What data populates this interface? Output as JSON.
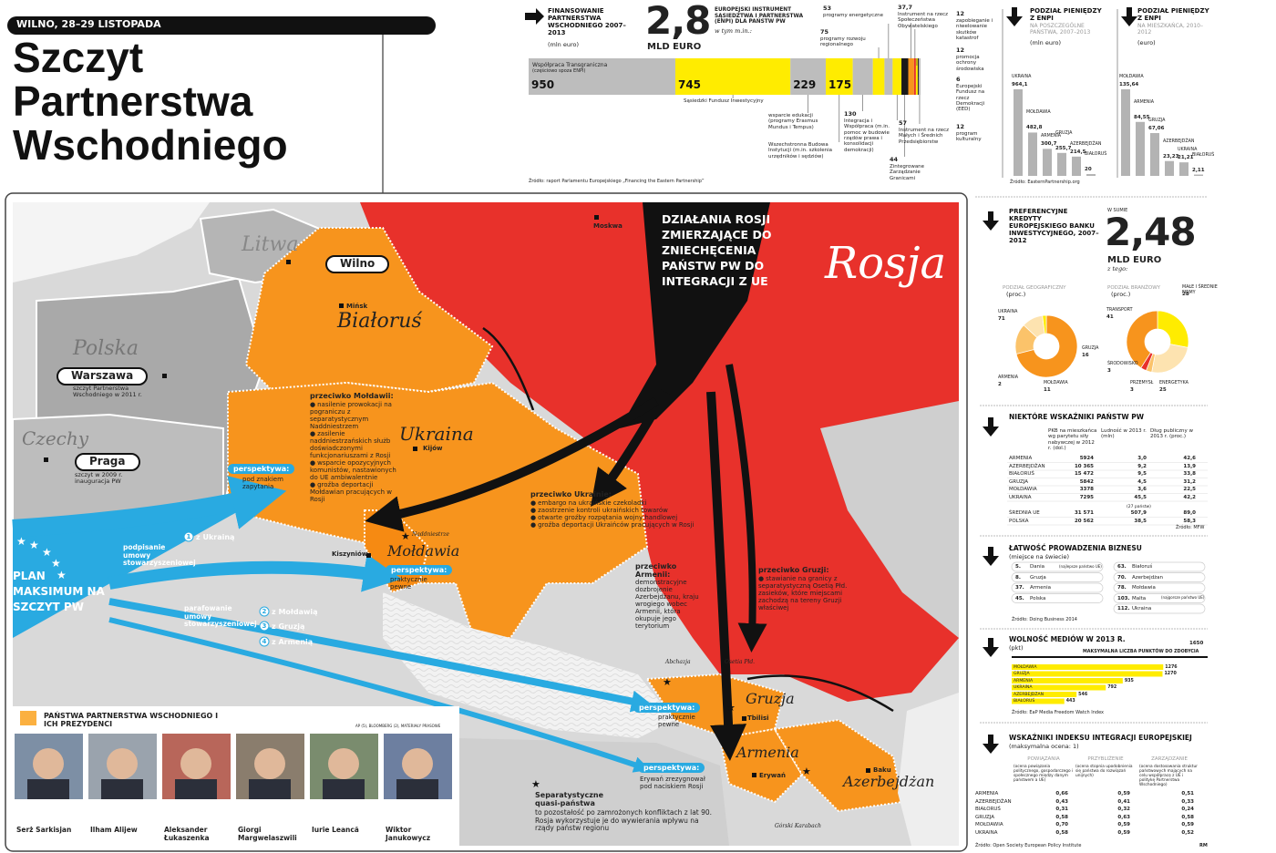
{
  "header": {
    "date": "WILNO, 28–29 LISTOPADA",
    "title": [
      "Szczyt",
      "Partnerstwa",
      "Wschodniego"
    ]
  },
  "financing": {
    "heading": "FINANSOWANIE PARTNERSTWA WSCHODNIEGO 2007–2013",
    "unit": "(mln euro)",
    "total": "2,8",
    "total_unit": "MLD EURO",
    "enpi_heading": "EUROPEJSKI INSTRUMENT SĄSIEDZTWA I PARTNERSTWA (ENPI) DLA PAŃSTW PW",
    "enpi_note": "w tym m.in.:",
    "cross_border_note": "(częściowo spoza ENPI)",
    "chart": {
      "type": "bar",
      "categories": [
        "Współpraca Transgraniczna",
        "Sąsiedzki Fundusz Inwestycyjny",
        "wsparcie edukacji (programy Erasmus Mundus i Tempus)",
        "Wszechstronna Budowa Instytucji (m.in. szkolenia urzędników i sędziów)",
        "Integracja i Współpraca (m.in. pomoc w budowie rządów prawa i konsolidacji demokracji)",
        "programy rozwoju regionalnego",
        "programy energetyczne",
        "Instrument na rzecz Małych i Średnich Przedsiębiorstw",
        "Zintegrowane Zarządzanie Granicami",
        "Instrument na rzecz Społeczeństwa Obywatelskiego",
        "zapobieganie i niwelowanie skutków katastrof",
        "promocja ochrony środowiska",
        "Europejski Fundusz na rzecz Demokracji (EED)",
        "program kulturalny"
      ],
      "values": [
        950,
        745,
        229,
        175,
        130,
        75,
        53,
        57,
        44,
        37.7,
        12,
        12,
        6,
        12
      ],
      "value_labels": [
        "950",
        "745",
        "229",
        "175",
        "130",
        "75",
        "53",
        "57",
        "44",
        "37,7",
        "12",
        "12",
        "6",
        "12"
      ],
      "colors": [
        "#bdbdbd",
        "#ffec00",
        "#bdbdbd",
        "#ffec00",
        "#bdbdbd",
        "#ffec00",
        "#bdbdbd",
        "#ffec00",
        "#1a1a1a",
        "#f7941d",
        "#e8312b",
        "#ffec00",
        "#1a1a1a",
        "#bdbdbd"
      ]
    },
    "source": "Źródło: raport Parlamentu Europejskiego „Financing the Eastern Partnership”"
  },
  "enpi_countries": {
    "type": "bar",
    "heading": "PODZIAŁ PIENIĘDZY Z ENPI",
    "subheading": "NA POSZCZEGÓLNE PAŃSTWA, 2007–2013",
    "unit": "(mln euro)",
    "categories": [
      "UKRAINA",
      "MOŁDAWIA",
      "ARMENIA",
      "GRUZJA",
      "AZERBEJDŻAN",
      "BIAŁORUŚ"
    ],
    "values": [
      964.1,
      482.8,
      300.7,
      255.7,
      214.5,
      20
    ],
    "value_labels": [
      "964,1",
      "482,8",
      "300,7",
      "255,7",
      "214,5",
      "20"
    ],
    "color": "#b3b3b3",
    "source": "Źródło: EasternPartnership.org"
  },
  "enpi_per_capita": {
    "type": "bar",
    "heading": "PODZIAŁ PIENIĘDZY Z ENPI",
    "subheading": "NA MIESZKAŃCA, 2010–2012",
    "unit": "(euro)",
    "categories": [
      "MOŁDAWIA",
      "ARMENIA",
      "GRUZJA",
      "AZERBEJDŻAN",
      "UKRAINA",
      "BIAŁORUŚ"
    ],
    "values": [
      135.64,
      84.55,
      67.06,
      23.23,
      21.21,
      2.11
    ],
    "value_labels": [
      "135,64",
      "84,55",
      "67,06",
      "23,23",
      "21,21",
      "2,11"
    ],
    "color": "#b3b3b3"
  },
  "eib": {
    "heading": "PREFERENCYJNE KREDYTY EUROPEJSKIEGO BANKU INWESTYCYJNEGO, 2007–2012",
    "total_note": "W SUMIE",
    "total": "2,48",
    "total_unit": "MLD EURO",
    "of_which": "z tego:",
    "charts": [
      {
        "type": "pie",
        "title": "PODZIAŁ GEOGRAFICZNY",
        "unit": "(proc.)",
        "categories": [
          "UKRAINA",
          "GRUZJA",
          "MOŁDAWIA",
          "ARMENIA"
        ],
        "values": [
          71,
          16,
          11,
          2
        ],
        "colors": [
          "#f7941d",
          "#fbc36a",
          "#fde3b0",
          "#ffec00"
        ]
      },
      {
        "type": "pie",
        "title": "PODZIAŁ BRANŻOWY",
        "unit": "(proc.)",
        "categories": [
          "MAŁE I ŚREDNIE FIRMY",
          "ENERGETYKA",
          "PRZEMYSŁ",
          "ŚRODOWISKO",
          "TRANSPORT"
        ],
        "values": [
          28,
          25,
          3,
          3,
          41
        ],
        "colors": [
          "#ffec00",
          "#fde3b0",
          "#fbc36a",
          "#e8312b",
          "#f7941d"
        ]
      }
    ]
  },
  "indicators": {
    "heading": "NIEKTÓRE WSKAŹNIKI PAŃSTW PW",
    "columns": [
      "PKB na mieszkańca wg parytetu siły nabywczej w 2012 r. (dol.)",
      "Ludność w 2013 r. (mln)",
      "Dług publiczny w 2013 r. (proc.)"
    ],
    "rows": [
      [
        "ARMENIA",
        "5924",
        "3,0",
        "42,6"
      ],
      [
        "AZERBEJDŻAN",
        "10 365",
        "9,2",
        "13,9"
      ],
      [
        "BIAŁORUŚ",
        "15 472",
        "9,5",
        "33,8"
      ],
      [
        "GRUZJA",
        "5842",
        "4,5",
        "31,2"
      ],
      [
        "MOŁDAWIA",
        "3378",
        "3,6",
        "22,5"
      ],
      [
        "UKRAINA",
        "7295",
        "45,5",
        "42,2"
      ],
      [
        "ŚREDNIA UE",
        "31 571",
        "507,9",
        "89,0"
      ],
      [
        "POLSKA",
        "20 562",
        "38,5",
        "58,3"
      ]
    ],
    "eu_note": "(27 państw)",
    "source": "Źródło: MFW"
  },
  "business": {
    "heading": "ŁATWOŚĆ PROWADZENIA BIZNESU",
    "unit": "(miejsce na świecie)",
    "left": [
      {
        "rank": "5.",
        "country": "Dania",
        "note": "(najlepsze państwo UE)"
      },
      {
        "rank": "8.",
        "country": "Gruzja"
      },
      {
        "rank": "37.",
        "country": "Armenia"
      },
      {
        "rank": "45.",
        "country": "Polska"
      }
    ],
    "right": [
      {
        "rank": "63.",
        "country": "Białoruś"
      },
      {
        "rank": "70.",
        "country": "Azerbejdżan"
      },
      {
        "rank": "78.",
        "country": "Mołdawia"
      },
      {
        "rank": "103.",
        "country": "Malta",
        "note": "(najgorsze państwo UE)"
      },
      {
        "rank": "112.",
        "country": "Ukraina"
      }
    ],
    "source": "Źródło: Doing Business 2014"
  },
  "media": {
    "type": "bar",
    "heading": "WOLNOŚĆ MEDIÓW W 2013 R.",
    "unit": "(pkt)",
    "max": 1650,
    "max_label": "MAKSYMALNA LICZBA PUNKTÓW DO ZDOBYCIA",
    "categories": [
      "MOŁDAWIA",
      "GRUZJA",
      "ARMENIA",
      "UKRAINA",
      "AZERBEJDŻAN",
      "BIAŁORUŚ"
    ],
    "values": [
      1276,
      1270,
      935,
      792,
      546,
      443
    ],
    "color": "#ffec00",
    "source": "Źródło: EaP Media Freedom Watch Index"
  },
  "integration": {
    "heading": "WSKAŹNIKI INDEKSU INTEGRACJI EUROPEJSKIEJ",
    "unit": "(maksymalna ocena: 1)",
    "columns": [
      {
        "title": "POWIĄZANIA",
        "desc": "(ocena powiązania politycznego, gospodarczego i społecznego między danym państwem a UE)"
      },
      {
        "title": "PRZYBLIŻENIE",
        "desc": "(ocena stopnia upodobnienia się państwa do rozwiązań unijnych)"
      },
      {
        "title": "ZARZĄDZANIE",
        "desc": "(ocena dostosowania struktur państwowych mających na celu współpracę z UE i politykę Partnerstwa Wschodniego)"
      }
    ],
    "rows": [
      [
        "ARMENIA",
        "0,66",
        "0,59",
        "0,51"
      ],
      [
        "AZERBEJDŻAN",
        "0,43",
        "0,41",
        "0,33"
      ],
      [
        "BIAŁORUŚ",
        "0,31",
        "0,32",
        "0,24"
      ],
      [
        "GRUZJA",
        "0,58",
        "0,63",
        "0,58"
      ],
      [
        "MOŁDAWIA",
        "0,70",
        "0,59",
        "0,59"
      ],
      [
        "UKRAINA",
        "0,58",
        "0,59",
        "0,52"
      ]
    ],
    "source": "Źródło: Open Society European Policy Institute",
    "author": "RM"
  },
  "map": {
    "countries": {
      "lithuania": "Litwa",
      "poland": "Polska",
      "czechia": "Czechy",
      "belarus": "Białoruś",
      "ukraine": "Ukraina",
      "russia": "Rosja",
      "moldova": "Mołdawia",
      "georgia": "Gruzja",
      "armenia": "Armenia",
      "azerbaijan": "Azerbejdżan"
    },
    "summits": {
      "vilnius": "Wilno",
      "warsaw": "Warszawa",
      "warsaw_note": "szczyt Partnerstwa Wschodniego w 2011 r.",
      "prague": "Praga",
      "prague_note": "szczyt w 2009 r. inauguracja PW"
    },
    "cities": {
      "minsk": "Mińsk",
      "kyiv": "Kijów",
      "moscow": "Moskwa",
      "chisinau": "Kiszyniów",
      "tbilisi": "Tbilisi",
      "yerevan": "Erywań",
      "baku": "Baku"
    },
    "regions": {
      "transnistria": "Naddniestrze",
      "abkhazia": "Abchazja",
      "south_ossetia": "Osetia Płd.",
      "karabakh": "Górski Karabach"
    },
    "russia_arrow": "DZIAŁANIA ROSJI ZMIERZAJĄCE DO ZNIECHĘCENIA PAŃSTW PW DO INTEGRACJI Z UE",
    "against": [
      {
        "title": "przeciwko Mołdawii:",
        "items": [
          "nasilenie prowokacji na pograniczu z separatystycznym Naddniestrzem",
          "zasilenie naddniestrzańskich służb doświadczonymi funkcjonariuszami z Rosji",
          "wsparcie opozycyjnych komunistów, nastawionych do UE ambiwalentnie",
          "groźba deportacji Mołdawian pracujących w Rosji"
        ]
      },
      {
        "title": "przeciwko Ukrainie:",
        "items": [
          "embargo na ukraińskie czekoladki",
          "zaostrzenie kontroli ukraińskich towarów",
          "otwarte groźby rozpętania wojny handlowej",
          "groźba deportacji Ukraińców pracujących w Rosji"
        ]
      },
      {
        "title": "przeciwko Armenii:",
        "items": [
          "demonstracyjne dozbrojenie Azerbejdżanu, kraju wrogiego wobec Armenii, która okupuje jego terytorium"
        ]
      },
      {
        "title": "przeciwko Gruzji:",
        "items": [
          "stawianie na granicy z separatystyczną Osetią Płd. zasieków, które miejscami zachodzą na tereny Gruzji właściwej"
        ]
      }
    ],
    "perspectives": [
      {
        "title": "perspektywa:",
        "text": "pod znakiem zapytania"
      },
      {
        "title": "perspektywa:",
        "text": "praktycznie pewne"
      },
      {
        "title": "perspektywa:",
        "text": "praktycznie pewne"
      },
      {
        "title": "perspektywa:",
        "text": "Erywań zrezygnował pod naciskiem Rosji"
      }
    ],
    "plan": {
      "title": "PLAN MAKSIMUM NA SZCZYT PW",
      "sign": "podpisanie umowy stowarzyszeniowej",
      "initial": "parafowanie umowy stowarzyszeniowej",
      "steps": [
        {
          "n": "1",
          "text": "z Ukrainą"
        },
        {
          "n": "2",
          "text": "z Mołdawią"
        },
        {
          "n": "3",
          "text": "z Gruzją"
        },
        {
          "n": "4",
          "text": "z Armenią"
        }
      ]
    },
    "separatist": {
      "title": "Separatystyczne quasi-państwa",
      "text": "to pozostałość po zamrożonych konfliktach z lat 90. Rosja wykorzystuje je do wywierania wpływu na rządy państw regionu"
    },
    "legend": {
      "title": "PAŃSTWA PARTNERSTWA WSCHODNIEGO I ICH PREZYDENCI",
      "credit": "AP (5), BLOOMBERG (2), MATERIAŁY PRASOWE",
      "presidents": [
        {
          "country": "Armenia",
          "name": "Serż Sarkisjan"
        },
        {
          "country": "Azerbejdżan",
          "name": "Ilham Alijew"
        },
        {
          "country": "Białoruś",
          "name": "Aleksander Łukaszenka"
        },
        {
          "country": "Gruzja",
          "name": "Giorgi Margwelaszwili"
        },
        {
          "country": "Mołdawia",
          "name": "Iurie Leancă"
        },
        {
          "country": "Ukraina",
          "name": "Wiktor Janukowycz"
        }
      ]
    }
  }
}
